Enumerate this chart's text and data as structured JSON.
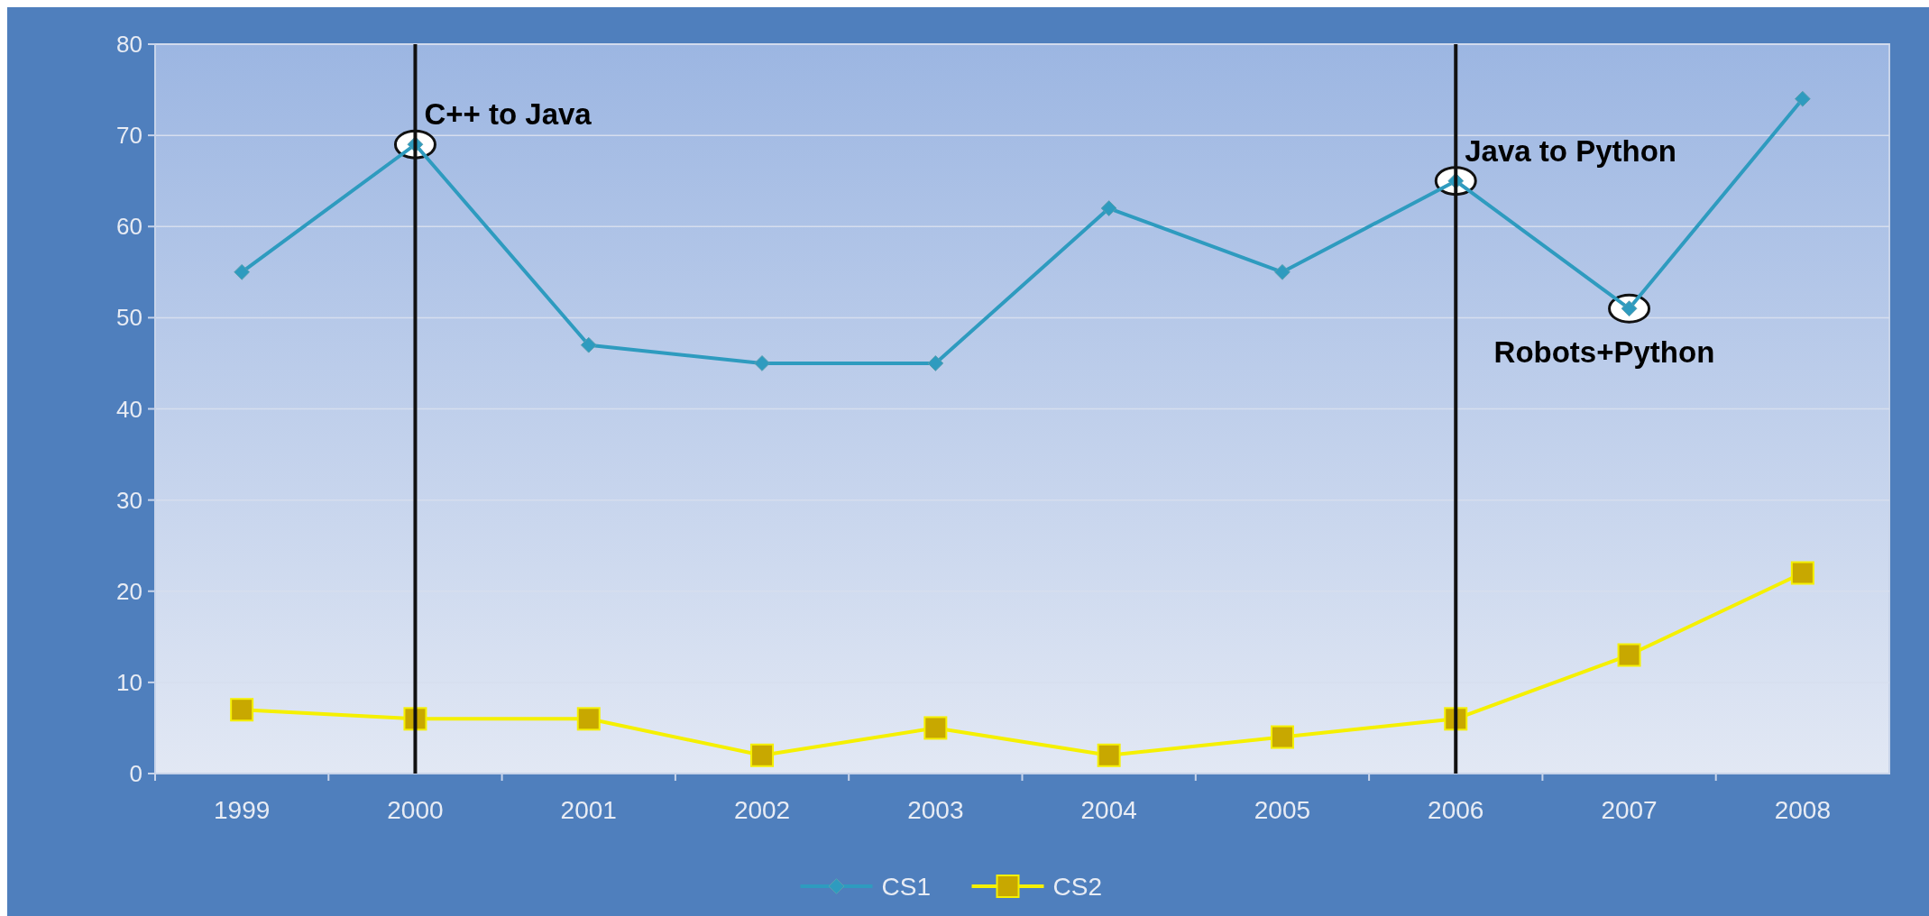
{
  "chart_data": {
    "type": "line",
    "categories": [
      "1999",
      "2000",
      "2001",
      "2002",
      "2003",
      "2004",
      "2005",
      "2006",
      "2007",
      "2008"
    ],
    "series": [
      {
        "name": "CS1",
        "color": "#2e9bbf",
        "values": [
          55,
          69,
          47,
          45,
          45,
          62,
          55,
          65,
          51,
          74
        ],
        "marker": "diamond"
      },
      {
        "name": "CS2",
        "color": "#f5f000",
        "values": [
          7,
          6,
          6,
          2,
          5,
          2,
          4,
          6,
          13,
          22
        ],
        "marker": "square"
      }
    ],
    "ylim": [
      0,
      80
    ],
    "yticks": [
      0,
      10,
      20,
      30,
      40,
      50,
      60,
      70,
      80
    ],
    "grid": "y",
    "legend": "bottom",
    "ref_lines": [
      {
        "axis": "x",
        "value": "2000",
        "color": "#111111"
      },
      {
        "axis": "x",
        "value": "2006",
        "color": "#111111"
      }
    ],
    "annotations": [
      {
        "text": "C++ to Java",
        "x": "2000",
        "y": 69
      },
      {
        "text": "Java to Python",
        "x": "2006",
        "y": 65
      },
      {
        "text": "Robots+Python",
        "x": "2007",
        "y": 51
      }
    ]
  }
}
